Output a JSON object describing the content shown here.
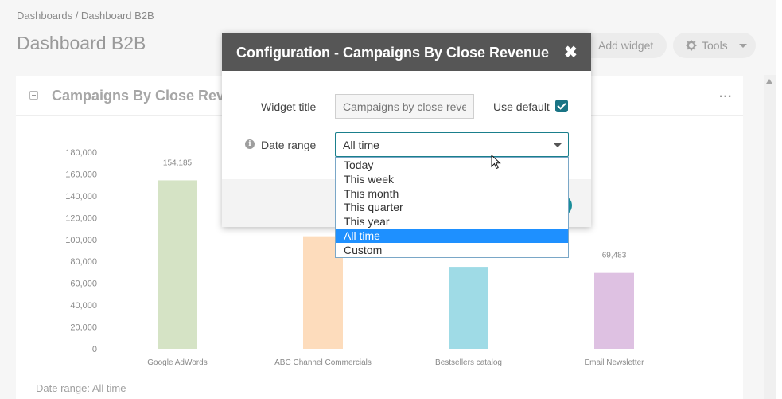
{
  "breadcrumb": "Dashboards / Dashboard B2B",
  "page_title": "Dashboard B2B",
  "header_buttons": {
    "add_widget": "Add widget",
    "tools": "Tools"
  },
  "widget": {
    "title": "Campaigns By Close Rev",
    "menu": "...",
    "footnote": "Date range: All time"
  },
  "chart_data": {
    "type": "bar",
    "categories": [
      "Google AdWords",
      "ABC Channel Commercials",
      "Bestsellers catalog",
      "Email Newsletter"
    ],
    "values": [
      154185,
      103000,
      75000,
      69483
    ],
    "data_labels": [
      "154,185",
      "",
      "",
      "69,483"
    ],
    "colors": [
      "#d5e3c5",
      "#fddcbc",
      "#9fdbe6",
      "#dec1e2"
    ],
    "ylim": [
      0,
      180000
    ],
    "yticks": [
      "0",
      "20,000",
      "40,000",
      "60,000",
      "80,000",
      "100,000",
      "120,000",
      "140,000",
      "160,000",
      "180,000"
    ],
    "grid": false
  },
  "modal": {
    "title": "Configuration - Campaigns By Close Revenue",
    "close_icon": "close-icon",
    "widget_title_label": "Widget title",
    "widget_title_placeholder": "Campaigns by close reve",
    "use_default_label": "Use default",
    "use_default_checked": true,
    "date_range_label": "Date range",
    "date_range_value": "All time",
    "date_range_options": [
      "Today",
      "This week",
      "This month",
      "This quarter",
      "This year",
      "All time",
      "Custom"
    ],
    "date_range_selected_index": 5
  },
  "colors": {
    "accent": "#1a7f8c",
    "selected_option": "#1e90ff",
    "modal_header": "#565656"
  }
}
